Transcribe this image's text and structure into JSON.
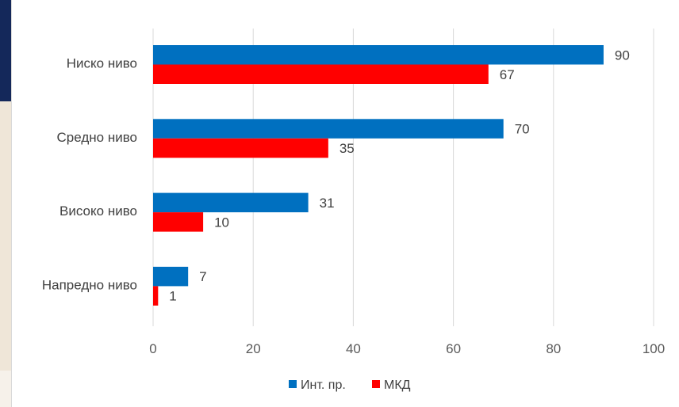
{
  "chart_data": {
    "type": "bar",
    "orientation": "horizontal",
    "categories": [
      "Ниско ниво",
      "Средно ниво",
      "Високо ниво",
      "Напредно ниво"
    ],
    "series": [
      {
        "name": "Инт. пр.",
        "values": [
          90,
          70,
          31,
          7
        ],
        "color": "#0070c0"
      },
      {
        "name": "МКД",
        "values": [
          67,
          35,
          10,
          1
        ],
        "color": "#ff0000"
      }
    ],
    "x_ticks": [
      0,
      20,
      40,
      60,
      80,
      100
    ],
    "xlim": [
      0,
      100
    ],
    "grid": true,
    "legend_position": "bottom",
    "title": "",
    "xlabel": "",
    "ylabel": ""
  }
}
